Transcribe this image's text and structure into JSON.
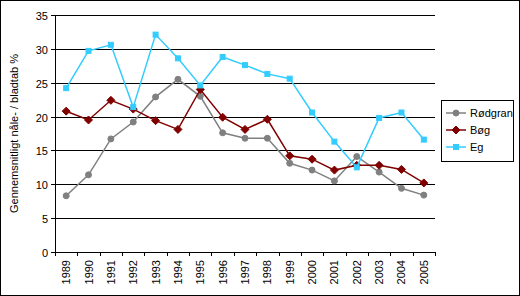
{
  "chart_data": {
    "type": "line",
    "y_label": "Gennemsnitligt nåle- / bladtab %",
    "categories": [
      "1989",
      "1990",
      "1991",
      "1992",
      "1993",
      "1994",
      "1995",
      "1996",
      "1997",
      "1998",
      "1999",
      "2000",
      "2001",
      "2002",
      "2003",
      "2004",
      "2005"
    ],
    "series": [
      {
        "name": "Rødgran",
        "color": "#808080",
        "marker": "circle",
        "values": [
          8.3,
          11.4,
          16.7,
          19.2,
          22.9,
          25.5,
          23.0,
          17.6,
          16.8,
          16.8,
          13.1,
          12.1,
          10.5,
          14.1,
          11.8,
          9.4,
          8.4
        ]
      },
      {
        "name": "Bøg",
        "color": "#800000",
        "marker": "diamond",
        "values": [
          20.8,
          19.5,
          22.4,
          21.1,
          19.4,
          18.1,
          24.0,
          19.9,
          18.1,
          19.6,
          14.2,
          13.7,
          12.1,
          12.8,
          12.8,
          12.2,
          10.2
        ]
      },
      {
        "name": "Eg",
        "color": "#33ccff",
        "marker": "square",
        "values": [
          24.2,
          29.7,
          30.6,
          21.4,
          32.1,
          28.6,
          24.6,
          28.8,
          27.6,
          26.3,
          25.6,
          20.6,
          16.3,
          12.5,
          19.8,
          20.6,
          16.6
        ]
      }
    ],
    "ylim": [
      0,
      35
    ],
    "yticks": [
      0,
      5,
      10,
      15,
      20,
      25,
      30,
      35
    ],
    "grid": true,
    "legend": "right"
  }
}
